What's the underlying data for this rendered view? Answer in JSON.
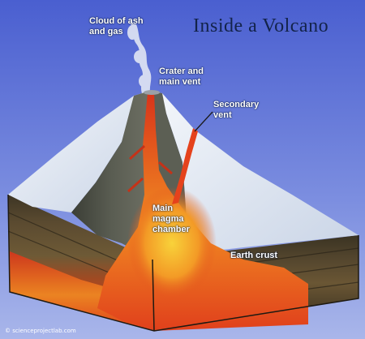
{
  "title": "Inside a Volcano",
  "credit": "© scienceprojectlab.com",
  "labels": {
    "cloud": "Cloud of ash and gas",
    "crater": "Crater and main vent",
    "secondary": "Secondary vent",
    "chamber": "Main magma chamber",
    "crust": "Earth crust"
  },
  "colors": {
    "sky_top": "#4a5fd0",
    "sky_bottom": "#a9b6ea",
    "snow": "#e8eef6",
    "rock": "#4f5248",
    "magma": "#e24a1c",
    "magma_hot": "#f6b52a",
    "strata": "#4a3c2a"
  }
}
